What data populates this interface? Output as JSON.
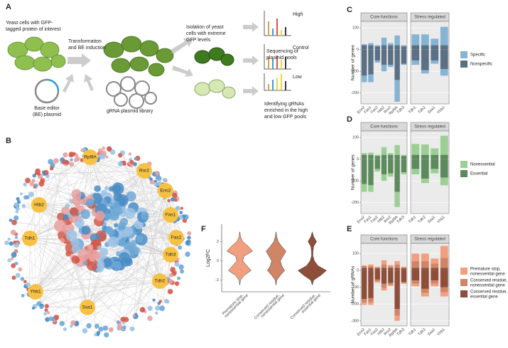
{
  "panel_letters": [
    "A",
    "B",
    "C",
    "D",
    "E",
    "F"
  ],
  "panel_a": {
    "cells": [
      "Yeast cells with GFP-",
      "tagged protein of interest"
    ],
    "transformation": [
      "Transformation",
      "and BE induction"
    ],
    "be_plasmid": [
      "Base editor",
      "(BE) plasmid"
    ],
    "library": "gRNA plasmid library",
    "isolation": [
      "Isolation of yeast",
      "cells with extreme",
      "GFP levels"
    ],
    "sequencing": [
      "Sequencing of",
      "plasmid pools"
    ],
    "pools": [
      "High",
      "Control",
      "Low"
    ],
    "identifying": [
      "Identifying gRNAs",
      "enriched in the high",
      "and low GFP pools"
    ]
  },
  "network": {
    "nodes": [
      "Rpl9A",
      "Rnr2",
      "Eno2",
      "Htb2",
      "Fas1",
      "Tdh1",
      "Fas2",
      "Tdh3",
      "Tdh2",
      "Yhb1",
      "Ssa1"
    ]
  },
  "chart_data": [
    {
      "type": "bar",
      "stacked": true,
      "y_label": "Number of genes",
      "facets": [
        {
          "label": "Core functions",
          "categories": [
            "Eno2",
            "Fas1",
            "Fas2",
            "Htb2",
            "Rnr2",
            "Rpl9A",
            "Tdh3"
          ]
        },
        {
          "label": "Stress regulated",
          "categories": [
            "Tdh1",
            "Tdh2",
            "Ssa1",
            "Yhb1"
          ]
        }
      ],
      "series": [
        {
          "name": "Specific",
          "color": "#86b4d3",
          "values": [
            5,
            10,
            5,
            35,
            10,
            45,
            5,
            50,
            50,
            30,
            85
          ],
          "negative_values": [
            -30,
            -35,
            -10,
            -30,
            -10,
            -100,
            -5,
            -20,
            -15,
            -15,
            -30
          ]
        },
        {
          "name": "Nonspecific",
          "color": "#5b7084",
          "values": [
            20,
            20,
            15,
            20,
            20,
            20,
            15,
            20,
            20,
            20,
            20
          ],
          "negative_values": [
            -120,
            -115,
            -50,
            -70,
            -70,
            -140,
            -65,
            -50,
            -95,
            -50,
            -90
          ]
        }
      ],
      "ylim": [
        -250,
        130
      ],
      "yticks": [
        100,
        0,
        -100,
        -200
      ]
    },
    {
      "type": "bar",
      "stacked": true,
      "y_label": "Number of genes",
      "facets": [
        {
          "label": "Core functions",
          "categories": [
            "Eno2",
            "Fas1",
            "Fas2",
            "Htb2",
            "Rnr2",
            "Rpl9A",
            "Tdh3"
          ]
        },
        {
          "label": "Stress regulated",
          "categories": [
            "Tdh1",
            "Tdh2",
            "Ssa1",
            "Yhb1"
          ]
        }
      ],
      "series": [
        {
          "name": "Nonessential",
          "color": "#9bcf94",
          "values": [
            8,
            10,
            5,
            35,
            8,
            45,
            5,
            50,
            48,
            30,
            88
          ],
          "negative_values": [
            -35,
            -30,
            -12,
            -30,
            -15,
            -70,
            -10,
            -25,
            -20,
            -20,
            -35
          ]
        },
        {
          "name": "Essential",
          "color": "#5d8a5c",
          "values": [
            20,
            20,
            15,
            20,
            20,
            20,
            15,
            20,
            20,
            20,
            20
          ],
          "negative_values": [
            -115,
            -120,
            -45,
            -70,
            -65,
            -150,
            -60,
            -45,
            -90,
            -45,
            -85
          ]
        }
      ],
      "ylim": [
        -250,
        130
      ],
      "yticks": [
        100,
        0,
        -100,
        -200
      ]
    },
    {
      "type": "bar",
      "stacked": true,
      "y_label": "Number of gRNAs",
      "facets": [
        {
          "label": "Core functions",
          "categories": [
            "Eno2",
            "Fas1",
            "Fas2",
            "Htb2",
            "Rnr2",
            "Rpl9A",
            "Tdh3"
          ]
        },
        {
          "label": "Stress regulated",
          "categories": [
            "Tdh1",
            "Tdh2",
            "Ssa1",
            "Yhb1"
          ]
        }
      ],
      "series": [
        {
          "name": [
            "Premature stop,",
            "nonessential gene"
          ],
          "color": "#f1a07f",
          "values": [
            5,
            10,
            5,
            25,
            8,
            20,
            5,
            45,
            45,
            30,
            70
          ],
          "negative_values": [
            -15,
            -15,
            -8,
            -15,
            -8,
            -30,
            -5,
            -15,
            -20,
            -15,
            -25
          ]
        },
        {
          "name": [
            "Conserved residue,",
            "nonessential gene"
          ],
          "color": "#d08566",
          "values": [
            10,
            10,
            5,
            20,
            8,
            20,
            5,
            40,
            40,
            25,
            60
          ],
          "negative_values": [
            -20,
            -25,
            -10,
            -25,
            -10,
            -40,
            -5,
            -20,
            -25,
            -20,
            -30
          ]
        },
        {
          "name": [
            "Conserved residue,",
            "essential gene"
          ],
          "color": "#8e4e3a",
          "values": [
            15,
            15,
            12,
            15,
            15,
            15,
            12,
            15,
            15,
            15,
            15
          ],
          "negative_values": [
            -170,
            -165,
            -55,
            -80,
            -75,
            -230,
            -70,
            -60,
            -110,
            -60,
            -100
          ]
        }
      ],
      "ylim": [
        -330,
        160
      ],
      "yticks": [
        100,
        0,
        -100,
        -200,
        -300
      ]
    },
    {
      "type": "violin",
      "y_label": "Log2FC",
      "categories": [
        [
          "Premature stop,",
          "nonessential gene"
        ],
        [
          "Conserved residue,",
          "nonessential gene"
        ],
        [
          "Conserved residue,",
          "essential gene"
        ]
      ],
      "colors": [
        "#f1a07f",
        "#d08566",
        "#8e4e3a"
      ],
      "y": [
        -2.5,
        -2,
        -1.5,
        -1,
        -0.5,
        0,
        0.5,
        1,
        1.5,
        2,
        2.5,
        3
      ],
      "densities": [
        [
          0,
          0.05,
          0.3,
          0.8,
          0.5,
          0.2,
          0.3,
          0.9,
          0.6,
          0.2,
          0.05,
          0
        ],
        [
          0,
          0.05,
          0.3,
          0.6,
          0.4,
          0.3,
          0.5,
          0.7,
          0.4,
          0.15,
          0.05,
          0
        ],
        [
          0,
          0.1,
          0.6,
          1,
          0.4,
          0.15,
          0.05,
          0.05,
          0.1,
          0.3,
          0.1,
          0
        ]
      ],
      "ylim": [
        -3.2,
        3.8
      ],
      "yticks": [
        2,
        0,
        -2
      ]
    }
  ]
}
